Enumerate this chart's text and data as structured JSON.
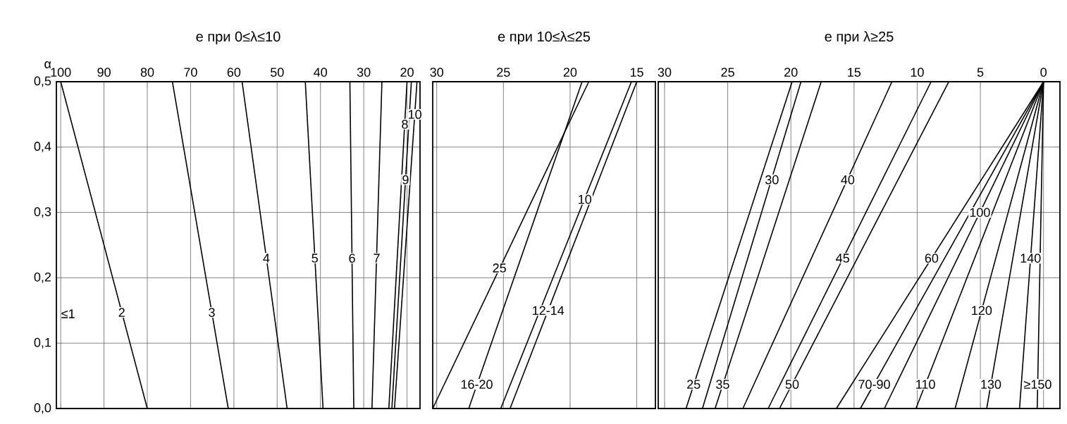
{
  "chart_data": [
    {
      "type": "line",
      "title": "e при 0≤λ≤10",
      "ylabel": "α",
      "xlim": [
        101,
        17
      ],
      "ylim": [
        0,
        0.5
      ],
      "xticks": [
        {
          "value": 100,
          "label": "100"
        },
        90,
        80,
        70,
        60,
        50,
        40,
        30,
        20
      ],
      "yticks": [
        {
          "value": 0,
          "label": "0,0"
        },
        {
          "value": 0.1,
          "label": "0,1"
        },
        {
          "value": 0.2,
          "label": "0,2"
        },
        {
          "value": 0.3,
          "label": "0,3"
        },
        {
          "value": 0.4,
          "label": "0,4"
        },
        {
          "value": 0.5,
          "label": "0,5"
        }
      ],
      "grid": true,
      "series": [
        {
          "color": "#000000",
          "x": [
            80,
            100
          ],
          "values": [
            0,
            0.5
          ]
        },
        {
          "color": "#000000",
          "x": [
            61.3,
            74.2
          ],
          "values": [
            0,
            0.5
          ]
        },
        {
          "color": "#000000",
          "x": [
            47.7,
            58.1
          ],
          "values": [
            0,
            0.5
          ]
        },
        {
          "color": "#000000",
          "x": [
            39.4,
            43.5
          ],
          "values": [
            0,
            0.5
          ]
        },
        {
          "color": "#000000",
          "x": [
            32.3,
            33.2
          ],
          "values": [
            0,
            0.5
          ]
        },
        {
          "color": "#000000",
          "x": [
            28.1,
            25.8
          ],
          "values": [
            0,
            0.5
          ]
        },
        {
          "color": "#000000",
          "x": [
            24.2,
            20
          ],
          "values": [
            0,
            0.5
          ]
        },
        {
          "color": "#000000",
          "x": [
            23.5,
            19
          ],
          "values": [
            0,
            0.5
          ]
        },
        {
          "color": "#000000",
          "x": [
            22.9,
            17.7
          ],
          "values": [
            0,
            0.5
          ]
        }
      ],
      "annotations": [
        "≤1",
        {
          "text": "2",
          "x": 85.9,
          "y": 0.147
        },
        {
          "text": "3",
          "x": 65.1,
          "y": 0.147
        },
        {
          "text": "4",
          "x": 52.5,
          "y": 0.23
        },
        {
          "text": "5",
          "x": 41.3,
          "y": 0.23
        },
        {
          "text": "6",
          "x": 32.7,
          "y": 0.23
        },
        {
          "text": "7",
          "x": 27.0,
          "y": 0.23
        },
        {
          "text": "8",
          "x": 20.5,
          "y": 0.435
        },
        {
          "text": "9",
          "x": 20.35,
          "y": 0.35
        },
        {
          "text": "10",
          "x": 18.2,
          "y": 0.45
        }
      ]
    },
    {
      "type": "line",
      "title": "e при 10≤λ≤25",
      "xlim": [
        30.3,
        13.6
      ],
      "ylim": [
        0,
        0.5
      ],
      "xticks": [
        30,
        25,
        20,
        15
      ],
      "yticks": [
        0,
        0.1,
        0.2,
        0.3,
        0.4,
        0.5
      ],
      "tick_labels": "x",
      "grid": true,
      "series": [
        {
          "color": "#000000",
          "x": [
            30.3,
            18.6
          ],
          "values": [
            0,
            0.5
          ]
        },
        {
          "color": "#000000",
          "x": [
            27.6,
            19.1
          ],
          "values": [
            0,
            0.5
          ]
        },
        {
          "color": "#000000",
          "x": [
            25.2,
            15.4
          ],
          "values": [
            0,
            0.5
          ]
        },
        {
          "color": "#000000",
          "x": [
            24.5,
            15.0
          ],
          "values": [
            0,
            0.5
          ]
        }
      ],
      "annotations": [
        {
          "text": "25",
          "x": 25.3,
          "y": 0.215
        },
        {
          "text": "10",
          "x": 18.9,
          "y": 0.32
        },
        {
          "text": "12-14",
          "x": 21.65,
          "y": 0.15
        },
        {
          "text": "16-20",
          "x": 27.0,
          "y": 0.037
        }
      ]
    },
    {
      "type": "line",
      "title": "e при λ≥25",
      "xlim": [
        30.5,
        -1.3
      ],
      "ylim": [
        0,
        0.5
      ],
      "xticks": [
        30,
        25,
        20,
        15,
        10,
        5,
        0
      ],
      "yticks": [
        0,
        0.1,
        0.2,
        0.3,
        0.4,
        0.5
      ],
      "tick_labels": "x",
      "grid": true,
      "series": [
        {
          "color": "#000000",
          "x": [
            28.3,
            19.9
          ],
          "values": [
            0,
            0.5
          ]
        },
        {
          "color": "#000000",
          "x": [
            27.0,
            19.2
          ],
          "values": [
            0,
            0.5
          ]
        },
        {
          "color": "#000000",
          "x": [
            26.0,
            17.6
          ],
          "values": [
            0,
            0.5
          ]
        },
        {
          "color": "#000000",
          "x": [
            23.8,
            12.0
          ],
          "values": [
            0,
            0.5
          ]
        },
        {
          "color": "#000000",
          "x": [
            21.8,
            8.9
          ],
          "values": [
            0,
            0.5
          ]
        },
        {
          "color": "#000000",
          "x": [
            20.9,
            7.5
          ],
          "values": [
            0,
            0.5
          ]
        },
        {
          "color": "#000000",
          "x": [
            16.4,
            0
          ],
          "values": [
            0,
            0.5
          ]
        },
        {
          "color": "#000000",
          "x": [
            14.5,
            0
          ],
          "values": [
            0,
            0.5
          ]
        },
        {
          "color": "#000000",
          "x": [
            12.6,
            0
          ],
          "values": [
            0,
            0.5
          ]
        },
        {
          "color": "#000000",
          "x": [
            10.1,
            0
          ],
          "values": [
            0,
            0.5
          ]
        },
        {
          "color": "#000000",
          "x": [
            7.0,
            0
          ],
          "values": [
            0,
            0.5
          ]
        },
        {
          "color": "#000000",
          "x": [
            4.5,
            0
          ],
          "values": [
            0,
            0.5
          ]
        },
        {
          "color": "#000000",
          "x": [
            1.9,
            0
          ],
          "values": [
            0,
            0.5
          ]
        },
        {
          "color": "#000000",
          "x": [
            0.5,
            0
          ],
          "values": [
            0,
            0.5
          ]
        }
      ],
      "annotations": [
        {
          "text": "30",
          "x": 21.5,
          "y": 0.35
        },
        {
          "text": "40",
          "x": 15.5,
          "y": 0.35
        },
        {
          "text": "45",
          "x": 15.9,
          "y": 0.23
        },
        {
          "text": "60",
          "x": 8.86,
          "y": 0.23
        },
        {
          "text": "100",
          "x": 5.04,
          "y": 0.3
        },
        {
          "text": "120",
          "x": 4.9,
          "y": 0.15
        },
        {
          "text": "140",
          "x": 1.03,
          "y": 0.23
        },
        {
          "text": "25",
          "x": 27.7,
          "y": 0.037
        },
        {
          "text": "35",
          "x": 25.4,
          "y": 0.037
        },
        {
          "text": "50",
          "x": 19.9,
          "y": 0.037
        },
        {
          "text": "70-90",
          "x": 13.4,
          "y": 0.037
        },
        {
          "text": "110",
          "x": 9.35,
          "y": 0.037
        },
        {
          "text": "130",
          "x": 4.17,
          "y": 0.037
        },
        {
          "text": "≥150",
          "x": 0.46,
          "y": 0.037
        }
      ]
    }
  ]
}
